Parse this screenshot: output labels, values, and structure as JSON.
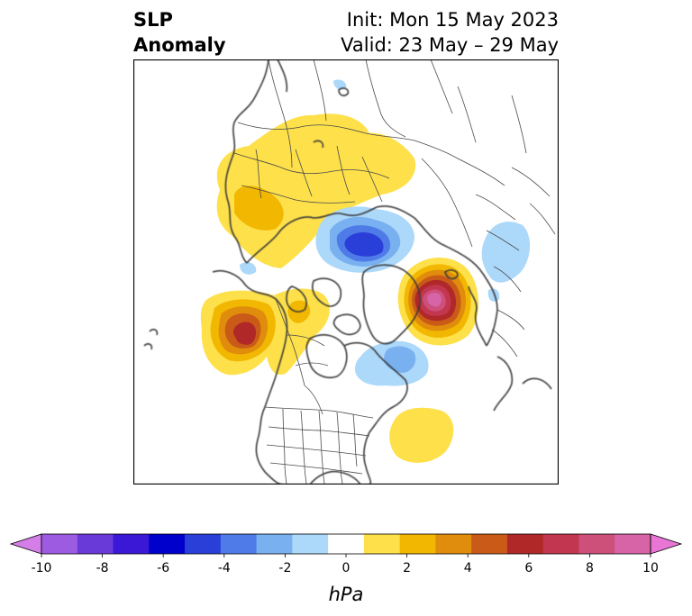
{
  "header": {
    "title_line1": "SLP",
    "title_line2": "Anomaly",
    "init": "Init: Mon 15 May 2023",
    "valid": "Valid: 23 May – 29 May"
  },
  "colorbar": {
    "unit": "hPa",
    "ticks": [
      "-10",
      "-8",
      "-6",
      "-4",
      "-2",
      "0",
      "2",
      "4",
      "6",
      "8",
      "10"
    ],
    "min": -10,
    "max": 10,
    "colors": [
      "#d57ee8",
      "#9d5be2",
      "#6a3ad9",
      "#3a18d6",
      "#0000cc",
      "#2a3fd8",
      "#4f7be8",
      "#78b0f0",
      "#acd8fa",
      "#ffffff",
      "#fde04a",
      "#f2b700",
      "#e08c0c",
      "#c95a18",
      "#b02828",
      "#c23650",
      "#cc507a",
      "#d864a8",
      "#e876d4"
    ]
  },
  "map": {
    "colors": {
      "coast": "#3a3a3a",
      "border": "#4a4a4a",
      "frame": "#000000"
    }
  }
}
